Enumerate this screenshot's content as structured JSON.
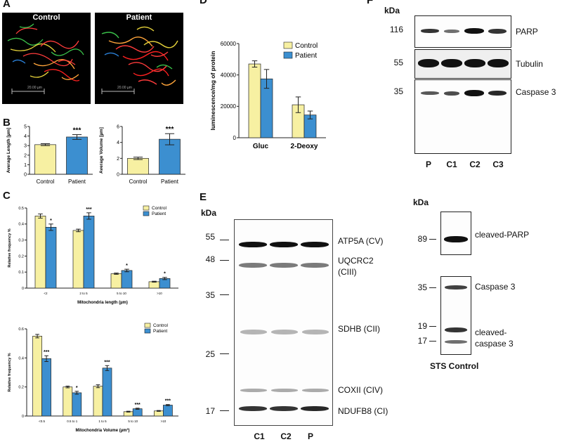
{
  "panels": {
    "A": "A",
    "B": "B",
    "C": "C",
    "D": "D",
    "E": "E",
    "F": "F"
  },
  "micrographs": {
    "control_label": "Control",
    "patient_label": "Patient",
    "scale_text": "20.00 µm"
  },
  "legend": {
    "control": "Control",
    "patient": "Patient"
  },
  "colors": {
    "control": "#f7f0a2",
    "patient": "#3c8fd0"
  },
  "chart_data": [
    {
      "id": "B-left",
      "type": "bar",
      "categories": [
        "Control",
        "Patient"
      ],
      "values": [
        3.1,
        3.9
      ],
      "errors": [
        0.1,
        0.25
      ],
      "significance": [
        "",
        "***"
      ],
      "ylabel": "Average Length [µm]",
      "ylim": [
        0,
        5
      ],
      "yticks": [
        0,
        1,
        2,
        3,
        4,
        5
      ]
    },
    {
      "id": "B-right",
      "type": "bar",
      "categories": [
        "Control",
        "Patient"
      ],
      "values": [
        2.0,
        4.4
      ],
      "errors": [
        0.15,
        0.7
      ],
      "significance": [
        "",
        "***"
      ],
      "ylabel": "Average Volume [µm]",
      "ylim": [
        0,
        6
      ],
      "yticks": [
        0,
        2,
        4,
        6
      ]
    },
    {
      "id": "C-top",
      "type": "bar",
      "categories": [
        "<2",
        "2 to 5",
        "5 to 10",
        ">10"
      ],
      "series": [
        {
          "name": "Control",
          "values": [
            0.45,
            0.36,
            0.09,
            0.04
          ],
          "errors": [
            0.013,
            0.008,
            0.004,
            0.003
          ]
        },
        {
          "name": "Patient",
          "values": [
            0.38,
            0.45,
            0.11,
            0.06
          ],
          "errors": [
            0.02,
            0.02,
            0.008,
            0.007
          ]
        }
      ],
      "significance": [
        "*",
        "***",
        "*",
        "*"
      ],
      "xlabel": "Mitochondria length (µm)",
      "ylabel": "Relative frequency %",
      "ylim": [
        0,
        0.5
      ],
      "yticks": [
        "0",
        "0.1",
        "0.2",
        "0.3",
        "0.4",
        "0.5"
      ]
    },
    {
      "id": "C-bottom",
      "type": "bar",
      "categories": [
        "<0.5",
        "0.5 to 1",
        "1 to 5",
        "5 to 10",
        ">10"
      ],
      "series": [
        {
          "name": "Control",
          "values": [
            0.55,
            0.2,
            0.205,
            0.03,
            0.035
          ],
          "errors": [
            0.012,
            0.006,
            0.01,
            0.003,
            0.003
          ]
        },
        {
          "name": "Patient",
          "values": [
            0.395,
            0.16,
            0.33,
            0.05,
            0.075
          ],
          "errors": [
            0.02,
            0.01,
            0.017,
            0.004,
            0.004
          ]
        }
      ],
      "significance": [
        "***",
        "*",
        "***",
        "***",
        "***"
      ],
      "xlabel": "Mitochondria Volume (µm³)",
      "ylabel": "Relative frequency %",
      "ylim": [
        0,
        0.6
      ],
      "yticks": [
        "0",
        "0.2",
        "0.4",
        "0.6"
      ]
    },
    {
      "id": "D",
      "type": "bar",
      "categories": [
        "Gluc",
        "2-Deoxy"
      ],
      "series": [
        {
          "name": "Control",
          "values": [
            47000,
            21000
          ],
          "errors": [
            2000,
            5000
          ]
        },
        {
          "name": "Patient",
          "values": [
            37500,
            14500
          ],
          "errors": [
            6000,
            2500
          ]
        }
      ],
      "ylabel": "luminescence/mg of protein",
      "ylim": [
        0,
        60000
      ],
      "yticks": [
        "0",
        "20000",
        "40000",
        "60000"
      ]
    }
  ],
  "blot_F": {
    "kda": "kDa",
    "rows": [
      {
        "mw": "116",
        "protein": "PARP"
      },
      {
        "mw": "55",
        "protein": "Tubulin"
      },
      {
        "mw": "35",
        "protein": "Caspase 3"
      }
    ],
    "lanes": [
      "P",
      "C1",
      "C2",
      "C3"
    ]
  },
  "blot_E": {
    "kda": "kDa",
    "markers": [
      "55",
      "48",
      "35",
      "25",
      "17"
    ],
    "proteins": [
      "ATP5A (CV)",
      "UQCRC2",
      "(CIII)",
      "SDHB (CII)",
      "COXII (CIV)",
      "NDUFB8 (CI)"
    ],
    "lanes": [
      "C1",
      "C2",
      "P"
    ]
  },
  "blot_sts": {
    "kda": "kDa",
    "markers": [
      "89",
      "35",
      "19",
      "17"
    ],
    "labels": [
      "cleaved-PARP",
      "Caspase 3",
      "cleaved-",
      "caspase 3"
    ],
    "caption": "STS Control"
  }
}
